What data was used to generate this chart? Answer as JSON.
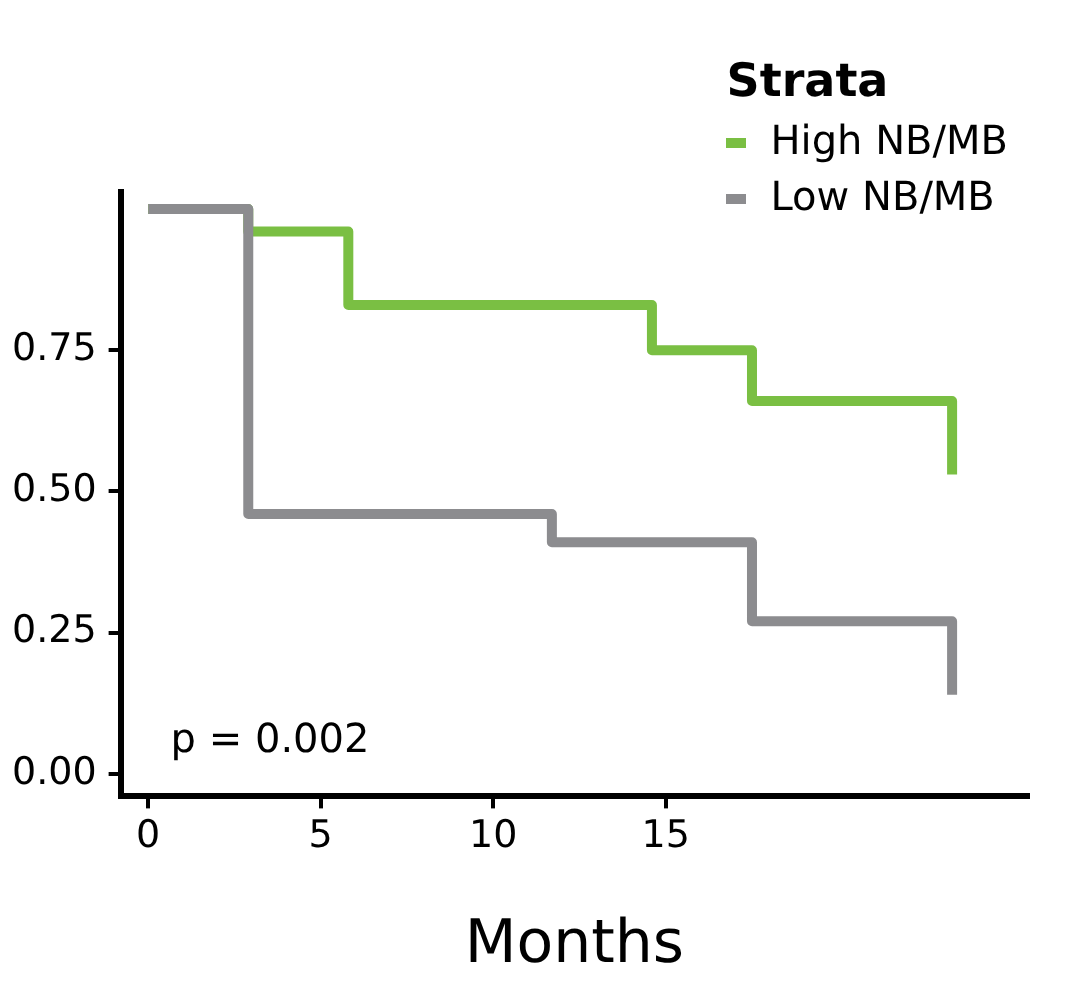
{
  "chart_data": {
    "type": "step",
    "xlabel": "Months",
    "legend_title": "Strata",
    "series": [
      {
        "name": "High NB/MB",
        "color": "#7abf43",
        "x": [
          0,
          2.9,
          5.8,
          14.6,
          17.5,
          23.3,
          23.3
        ],
        "values": [
          1,
          0.96,
          0.83,
          0.75,
          0.66,
          0.66,
          0.53
        ]
      },
      {
        "name": "Low NB/MB",
        "color": "#8c8c8f",
        "x": [
          0,
          2.9,
          11.7,
          17.5,
          23.3,
          23.3
        ],
        "values": [
          1,
          0.46,
          0.41,
          0.27,
          0.27,
          0.14
        ]
      }
    ],
    "xlim": [
      -0.8,
      25.5
    ],
    "xticks": [
      0,
      5,
      10,
      15
    ],
    "ylim": [
      -0.04,
      1.03
    ],
    "yticks": [
      {
        "value": 0,
        "label": "0.00"
      },
      {
        "value": 0.25,
        "label": "0.25"
      },
      {
        "value": 0.5,
        "label": "0.50"
      },
      {
        "value": 0.75,
        "label": "0.75"
      }
    ],
    "annotations": [
      "p = 0.002"
    ],
    "legend": "top right",
    "grid": false,
    "line_style": "solid",
    "marker": "none"
  }
}
